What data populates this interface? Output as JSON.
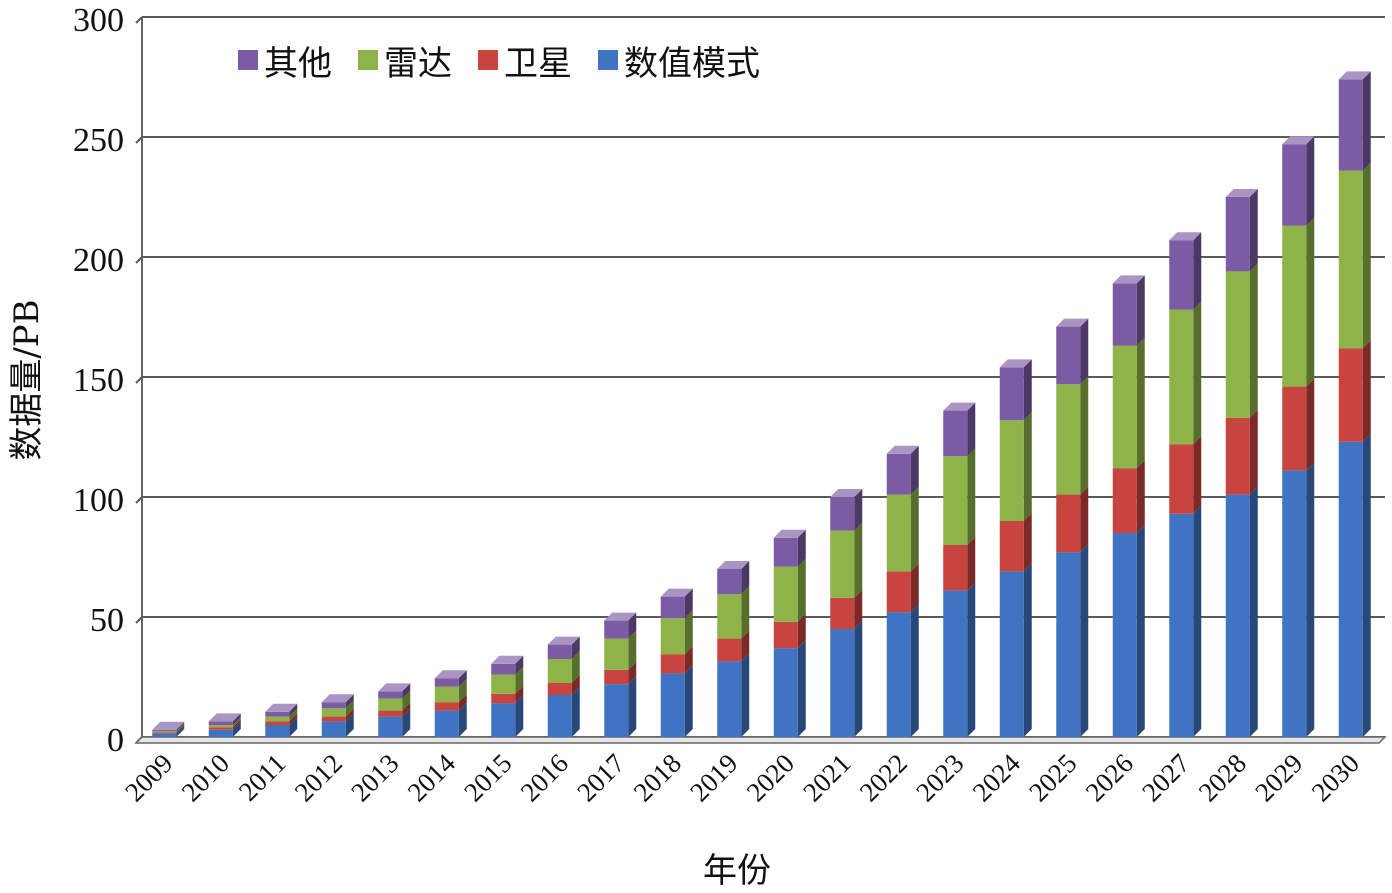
{
  "chart_data": {
    "type": "bar",
    "stacked": true,
    "three_d": true,
    "xlabel": "年份",
    "ylabel": "数据量/PB",
    "ylim": [
      0,
      300
    ],
    "yticks": [
      0,
      50,
      100,
      150,
      200,
      250,
      300
    ],
    "grid": true,
    "legend_position": "top-left",
    "categories": [
      "2009",
      "2010",
      "2011",
      "2012",
      "2013",
      "2014",
      "2015",
      "2016",
      "2017",
      "2018",
      "2019",
      "2020",
      "2021",
      "2022",
      "2023",
      "2024",
      "2025",
      "2026",
      "2027",
      "2028",
      "2029",
      "2030"
    ],
    "series": [
      {
        "name": "数值模式",
        "color": "#3f74c2",
        "values": [
          1.5,
          3,
          5,
          6.5,
          8.5,
          11,
          14,
          17.5,
          22,
          26.5,
          31.5,
          37,
          45,
          52,
          61,
          69,
          77,
          85,
          93,
          101,
          111,
          123
        ]
      },
      {
        "name": "卫星",
        "color": "#c8443f",
        "values": [
          0.5,
          1,
          1.5,
          2,
          2.5,
          3.5,
          4,
          5,
          6,
          8,
          9.5,
          11,
          13,
          17,
          19,
          21,
          24,
          27,
          29,
          32,
          35,
          39
        ]
      },
      {
        "name": "雷达",
        "color": "#8db349",
        "values": [
          0.5,
          1,
          2,
          3.5,
          5,
          6.5,
          8,
          10,
          13,
          15,
          18.5,
          23,
          28,
          32,
          37,
          42,
          46,
          51,
          56,
          61,
          67,
          74
        ]
      },
      {
        "name": "其他",
        "color": "#7b5ba3",
        "values": [
          0.5,
          1.5,
          2,
          2.5,
          3,
          3.5,
          4.5,
          6,
          7.5,
          9,
          10.5,
          12,
          14,
          17,
          19,
          22,
          24,
          26,
          29,
          31,
          34,
          38
        ]
      }
    ],
    "legend_order": [
      "其他",
      "雷达",
      "卫星",
      "数值模式"
    ],
    "colors": {
      "axis": "#666666",
      "grid": "#5a5a5a",
      "floor": "#e6e6e6"
    }
  }
}
